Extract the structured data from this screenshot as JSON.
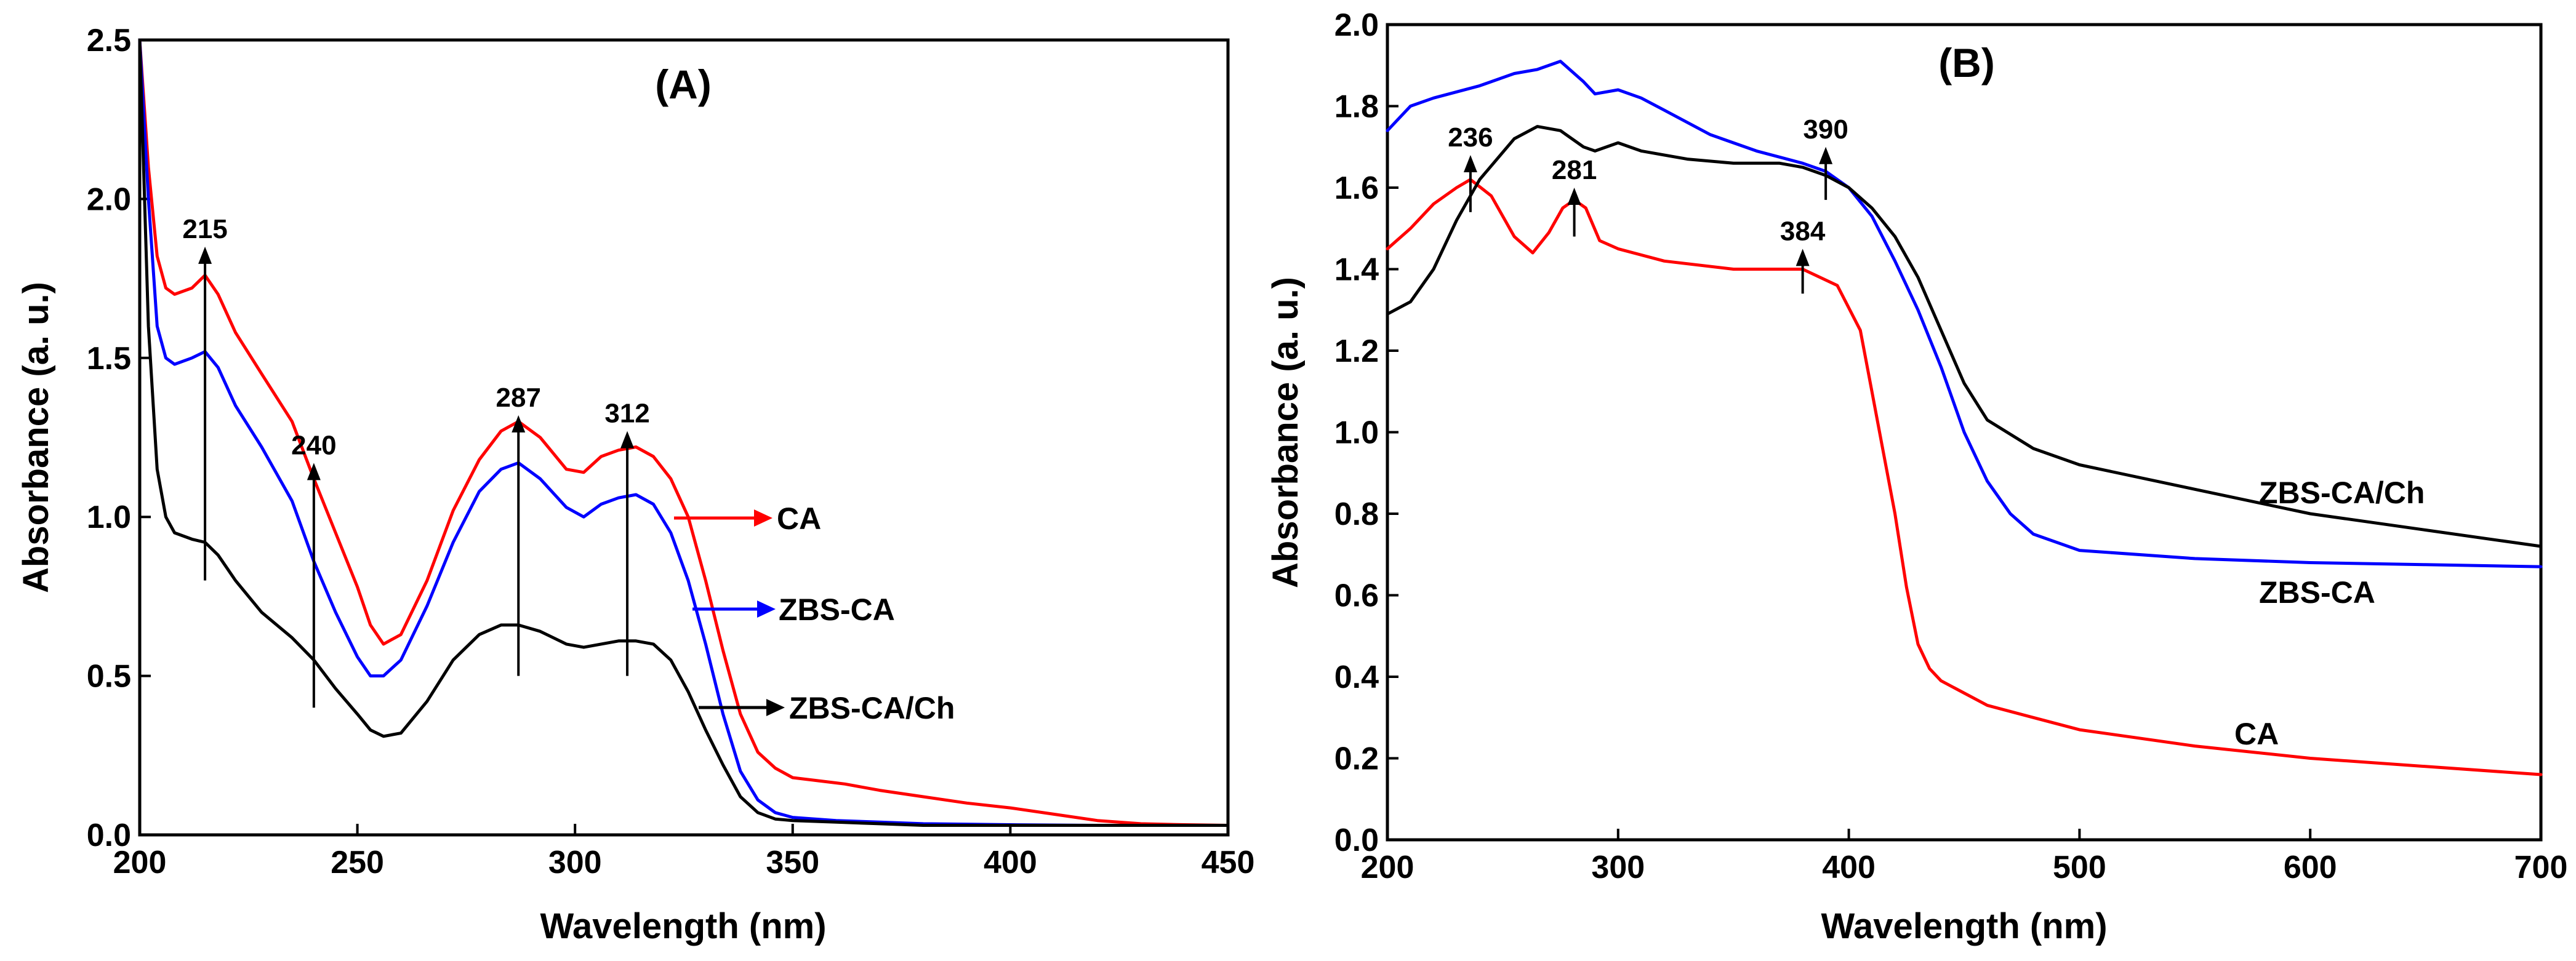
{
  "chart_data": [
    {
      "type": "line",
      "title": "(A)",
      "xlabel": "Wavelength (nm)",
      "ylabel": "Absorbance (a. u.)",
      "xlim": [
        200,
        450
      ],
      "ylim": [
        0.0,
        2.5
      ],
      "xticks": [
        200,
        250,
        300,
        350,
        400,
        450
      ],
      "yticks": [
        0.0,
        0.5,
        1.0,
        1.5,
        2.0,
        2.5
      ],
      "xtick_labels": [
        "200",
        "250",
        "300",
        "350",
        "400",
        "450"
      ],
      "ytick_labels": [
        "0.0",
        "0.5",
        "1.0",
        "1.5",
        "2.0",
        "2.5"
      ],
      "grid": false,
      "series": [
        {
          "name": "CA",
          "color": "#ff0000",
          "legend_label": "CA",
          "x": [
            200,
            202,
            204,
            206,
            208,
            212,
            215,
            218,
            222,
            228,
            235,
            240,
            245,
            250,
            253,
            256,
            260,
            266,
            272,
            278,
            283,
            287,
            292,
            298,
            302,
            306,
            310,
            314,
            318,
            322,
            326,
            330,
            334,
            338,
            342,
            346,
            350,
            356,
            362,
            370,
            380,
            390,
            400,
            410,
            420,
            430,
            440,
            450
          ],
          "y": [
            2.5,
            2.1,
            1.82,
            1.72,
            1.7,
            1.72,
            1.76,
            1.7,
            1.58,
            1.45,
            1.3,
            1.12,
            0.95,
            0.78,
            0.66,
            0.6,
            0.63,
            0.8,
            1.02,
            1.18,
            1.27,
            1.3,
            1.25,
            1.15,
            1.14,
            1.19,
            1.21,
            1.22,
            1.19,
            1.12,
            1.0,
            0.8,
            0.58,
            0.38,
            0.26,
            0.21,
            0.18,
            0.17,
            0.16,
            0.14,
            0.12,
            0.1,
            0.085,
            0.065,
            0.045,
            0.035,
            0.032,
            0.03
          ]
        },
        {
          "name": "ZBS-CA",
          "color": "#0000ff",
          "legend_label": "ZBS-CA",
          "x": [
            200,
            202,
            204,
            206,
            208,
            212,
            215,
            218,
            222,
            228,
            235,
            240,
            245,
            250,
            253,
            256,
            260,
            266,
            272,
            278,
            283,
            287,
            292,
            298,
            302,
            306,
            310,
            314,
            318,
            322,
            326,
            330,
            334,
            338,
            342,
            346,
            350,
            360,
            370,
            380,
            400,
            420,
            450
          ],
          "y": [
            2.5,
            2.0,
            1.6,
            1.5,
            1.48,
            1.5,
            1.52,
            1.47,
            1.35,
            1.22,
            1.05,
            0.86,
            0.7,
            0.56,
            0.5,
            0.5,
            0.55,
            0.72,
            0.92,
            1.08,
            1.15,
            1.17,
            1.12,
            1.03,
            1.0,
            1.04,
            1.06,
            1.07,
            1.04,
            0.95,
            0.8,
            0.6,
            0.38,
            0.2,
            0.11,
            0.07,
            0.055,
            0.045,
            0.04,
            0.035,
            0.032,
            0.03,
            0.03
          ]
        },
        {
          "name": "ZBS-CA/Ch",
          "color": "#000000",
          "legend_label": "ZBS-CA/Ch",
          "x": [
            200,
            202,
            204,
            206,
            208,
            212,
            215,
            218,
            222,
            228,
            235,
            240,
            245,
            250,
            253,
            256,
            260,
            266,
            272,
            278,
            283,
            287,
            292,
            298,
            302,
            306,
            310,
            314,
            318,
            322,
            326,
            330,
            334,
            338,
            342,
            346,
            350,
            360,
            370,
            380,
            400,
            420,
            450
          ],
          "y": [
            2.5,
            1.6,
            1.15,
            1.0,
            0.95,
            0.93,
            0.92,
            0.88,
            0.8,
            0.7,
            0.62,
            0.55,
            0.46,
            0.38,
            0.33,
            0.31,
            0.32,
            0.42,
            0.55,
            0.63,
            0.66,
            0.66,
            0.64,
            0.6,
            0.59,
            0.6,
            0.61,
            0.61,
            0.6,
            0.55,
            0.45,
            0.33,
            0.22,
            0.12,
            0.07,
            0.05,
            0.045,
            0.04,
            0.035,
            0.03,
            0.03,
            0.03,
            0.03
          ]
        }
      ],
      "annotations": [
        {
          "text": "215",
          "x": 215,
          "y_from": 0.8,
          "y_to": 1.85
        },
        {
          "text": "240",
          "x": 240,
          "y_from": 0.4,
          "y_to": 1.17
        },
        {
          "text": "287",
          "x": 287,
          "y_from": 0.5,
          "y_to": 1.32
        },
        {
          "text": "312",
          "x": 312,
          "y_from": 0.5,
          "y_to": 1.27
        }
      ]
    },
    {
      "type": "line",
      "title": "(B)",
      "xlabel": "Wavelength (nm)",
      "ylabel": "Absorbance (a. u.)",
      "xlim": [
        200,
        700
      ],
      "ylim": [
        0.0,
        2.0
      ],
      "xticks": [
        200,
        300,
        400,
        500,
        600,
        700
      ],
      "yticks": [
        0.0,
        0.2,
        0.4,
        0.6,
        0.8,
        1.0,
        1.2,
        1.4,
        1.6,
        1.8,
        2.0
      ],
      "xtick_labels": [
        "200",
        "300",
        "400",
        "500",
        "600",
        "700"
      ],
      "ytick_labels": [
        "0.0",
        "0.2",
        "0.4",
        "0.6",
        "0.8",
        "1.0",
        "1.2",
        "1.4",
        "1.6",
        "1.8",
        "2.0"
      ],
      "grid": false,
      "series": [
        {
          "name": "CA",
          "color": "#ff0000",
          "legend_label": "CA",
          "x": [
            200,
            210,
            220,
            230,
            236,
            245,
            255,
            263,
            270,
            276,
            281,
            286,
            292,
            300,
            320,
            350,
            380,
            395,
            405,
            410,
            415,
            420,
            425,
            430,
            435,
            440,
            450,
            460,
            480,
            500,
            550,
            600,
            650,
            700
          ],
          "y": [
            1.45,
            1.5,
            1.56,
            1.6,
            1.62,
            1.58,
            1.48,
            1.44,
            1.49,
            1.55,
            1.57,
            1.55,
            1.47,
            1.45,
            1.42,
            1.4,
            1.4,
            1.36,
            1.25,
            1.1,
            0.95,
            0.8,
            0.62,
            0.48,
            0.42,
            0.39,
            0.36,
            0.33,
            0.3,
            0.27,
            0.23,
            0.2,
            0.18,
            0.16
          ]
        },
        {
          "name": "ZBS-CA",
          "color": "#0000ff",
          "legend_label": "ZBS-CA",
          "x": [
            200,
            210,
            220,
            240,
            255,
            265,
            275,
            285,
            290,
            300,
            310,
            320,
            340,
            360,
            380,
            390,
            400,
            410,
            420,
            430,
            440,
            450,
            460,
            470,
            480,
            500,
            550,
            600,
            650,
            700
          ],
          "y": [
            1.74,
            1.8,
            1.82,
            1.85,
            1.88,
            1.89,
            1.91,
            1.86,
            1.83,
            1.84,
            1.82,
            1.79,
            1.73,
            1.69,
            1.66,
            1.64,
            1.6,
            1.53,
            1.42,
            1.3,
            1.16,
            1.0,
            0.88,
            0.8,
            0.75,
            0.71,
            0.69,
            0.68,
            0.675,
            0.67
          ]
        },
        {
          "name": "ZBS-CA/Ch",
          "color": "#000000",
          "legend_label": "ZBS-CA/Ch",
          "x": [
            200,
            210,
            220,
            230,
            240,
            255,
            265,
            275,
            285,
            290,
            300,
            310,
            330,
            350,
            370,
            380,
            390,
            400,
            410,
            420,
            430,
            440,
            450,
            460,
            480,
            500,
            550,
            600,
            650,
            700
          ],
          "y": [
            1.29,
            1.32,
            1.4,
            1.52,
            1.62,
            1.72,
            1.75,
            1.74,
            1.7,
            1.69,
            1.71,
            1.69,
            1.67,
            1.66,
            1.66,
            1.65,
            1.63,
            1.6,
            1.55,
            1.48,
            1.38,
            1.25,
            1.12,
            1.03,
            0.96,
            0.92,
            0.86,
            0.8,
            0.76,
            0.72
          ]
        }
      ],
      "annotations": [
        {
          "text": "236",
          "x": 236,
          "y_from": 1.54,
          "y_to": 1.68
        },
        {
          "text": "281",
          "x": 281,
          "y_from": 1.48,
          "y_to": 1.6
        },
        {
          "text": "384",
          "x": 380,
          "y_from": 1.34,
          "y_to": 1.45
        },
        {
          "text": "390",
          "x": 390,
          "y_from": 1.57,
          "y_to": 1.7
        }
      ]
    }
  ]
}
